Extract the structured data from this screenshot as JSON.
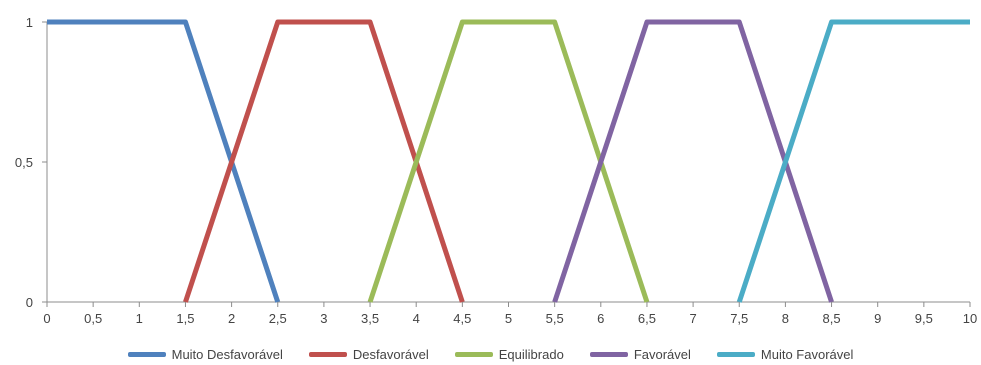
{
  "chart_data": {
    "type": "line",
    "xlim": [
      0,
      10
    ],
    "ylim": [
      0,
      1
    ],
    "x_ticks": [
      "0",
      "0,5",
      "1",
      "1,5",
      "2",
      "2,5",
      "3",
      "3,5",
      "4",
      "4,5",
      "5",
      "5,5",
      "6",
      "6,5",
      "7",
      "7,5",
      "8",
      "8,5",
      "9",
      "9,5",
      "10"
    ],
    "y_ticks": [
      "0",
      "0,5",
      "1"
    ],
    "grid": false,
    "legend_position": "bottom",
    "series": [
      {
        "name": "Muito Desfavorável",
        "color": "#4f81bd",
        "x": [
          0,
          1.5,
          2.5
        ],
        "y": [
          1,
          1,
          0
        ]
      },
      {
        "name": "Desfavorável",
        "color": "#c0504d",
        "x": [
          1.5,
          2.5,
          3.5,
          4.5
        ],
        "y": [
          0,
          1,
          1,
          0
        ]
      },
      {
        "name": "Equilibrado",
        "color": "#9bbb59",
        "x": [
          3.5,
          4.5,
          5.5,
          6.5
        ],
        "y": [
          0,
          1,
          1,
          0
        ]
      },
      {
        "name": "Favorável",
        "color": "#8064a2",
        "x": [
          5.5,
          6.5,
          7.5,
          8.5
        ],
        "y": [
          0,
          1,
          1,
          0
        ]
      },
      {
        "name": "Muito Favorável",
        "color": "#4bacc6",
        "x": [
          7.5,
          8.5,
          10
        ],
        "y": [
          0,
          1,
          1
        ]
      }
    ]
  }
}
